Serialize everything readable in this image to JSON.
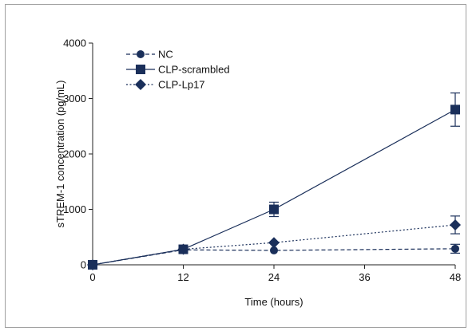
{
  "chart_data": {
    "type": "line",
    "title": "",
    "xlabel": "Time (hours)",
    "ylabel": "sTREM-1 concentration (pg/mL)",
    "xlim": [
      0,
      48
    ],
    "ylim": [
      0,
      4000
    ],
    "x_ticks": [
      "0",
      "12",
      "24",
      "36",
      "48"
    ],
    "y_ticks": [
      "0",
      "1000",
      "2000",
      "3000",
      "4000"
    ],
    "grid": false,
    "legend_position": "top-left",
    "x": [
      0,
      12,
      24,
      48
    ],
    "series": [
      {
        "name": "NC",
        "marker": "circle",
        "line_style": "dashed",
        "color": "#1a2f5a",
        "values": [
          0,
          270,
          260,
          290
        ],
        "error": [
          0,
          0,
          0,
          80
        ]
      },
      {
        "name": "CLP-scrambled",
        "marker": "square",
        "line_style": "solid",
        "color": "#1a2f5a",
        "values": [
          0,
          280,
          1000,
          2800
        ],
        "error": [
          0,
          0,
          130,
          300
        ]
      },
      {
        "name": "CLP-Lp17",
        "marker": "diamond",
        "line_style": "dotted",
        "color": "#1a2f5a",
        "values": [
          0,
          280,
          400,
          720
        ],
        "error": [
          0,
          0,
          0,
          160
        ]
      }
    ]
  }
}
